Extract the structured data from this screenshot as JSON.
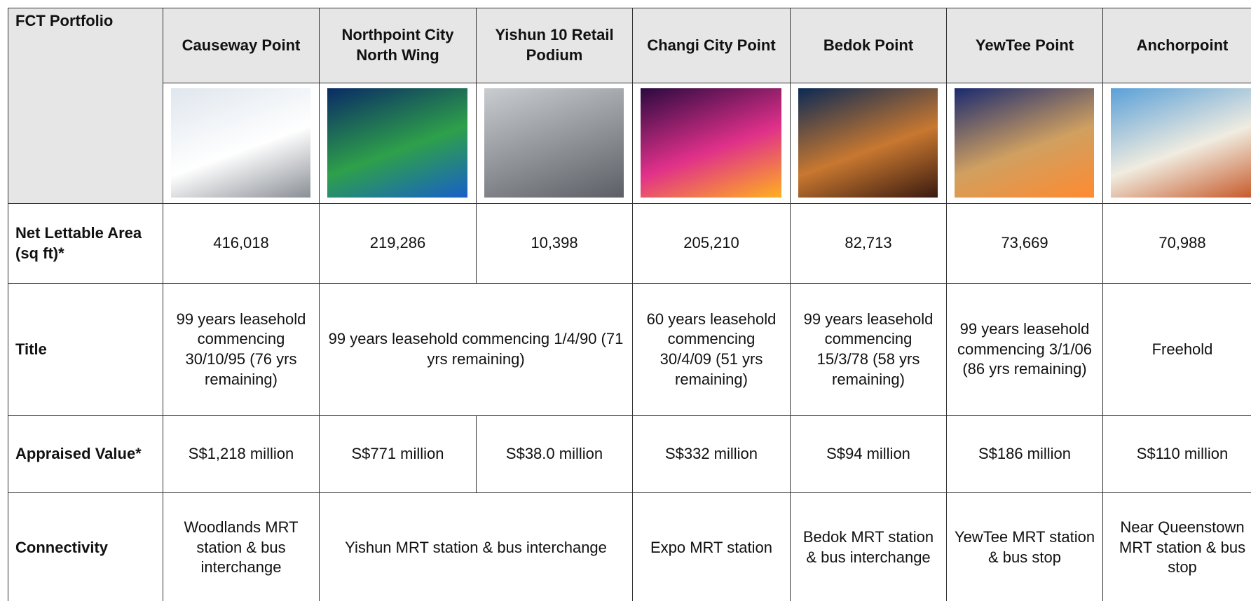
{
  "header": {
    "title": "FCT Portfolio"
  },
  "table": {
    "columns": [
      "Causeway Point",
      "Northpoint City North Wing",
      "Yishun 10 Retail Podium",
      "Changi City Point",
      "Bedok Point",
      "YewTee Point",
      "Anchorpoint"
    ],
    "rows": [
      {
        "label": "Net Lettable Area (sq ft)*",
        "cells": [
          "416,018",
          "219,286",
          "10,398",
          "205,210",
          "82,713",
          "73,669",
          "70,988"
        ]
      },
      {
        "label": "Title",
        "cells": [
          "99 years leasehold commencing 30/10/95  (76 yrs remaining)",
          "99 years leasehold commencing 1/4/90  (71 yrs remaining)",
          "60 years leasehold commencing 30/4/09  (51 yrs remaining)",
          "99 years leasehold commencing 15/3/78  (58 yrs remaining)",
          "99 years leasehold commencing 3/1/06  (86 yrs remaining)",
          "Freehold"
        ]
      },
      {
        "label": "Appraised Value*",
        "cells": [
          "S$1,218 million",
          "S$771 million",
          "S$38.0 million",
          "S$332 million",
          "S$94 million",
          "S$186 million",
          "S$110 million"
        ]
      },
      {
        "label": "Connectivity",
        "cells": [
          "Woodlands MRT station &  bus interchange",
          "Yishun MRT station &  bus interchange",
          "Expo MRT station",
          "Bedok MRT station &  bus interchange",
          "YewTee MRT station &   bus stop",
          "Near Queenstown MRT station & bus stop"
        ]
      }
    ]
  }
}
